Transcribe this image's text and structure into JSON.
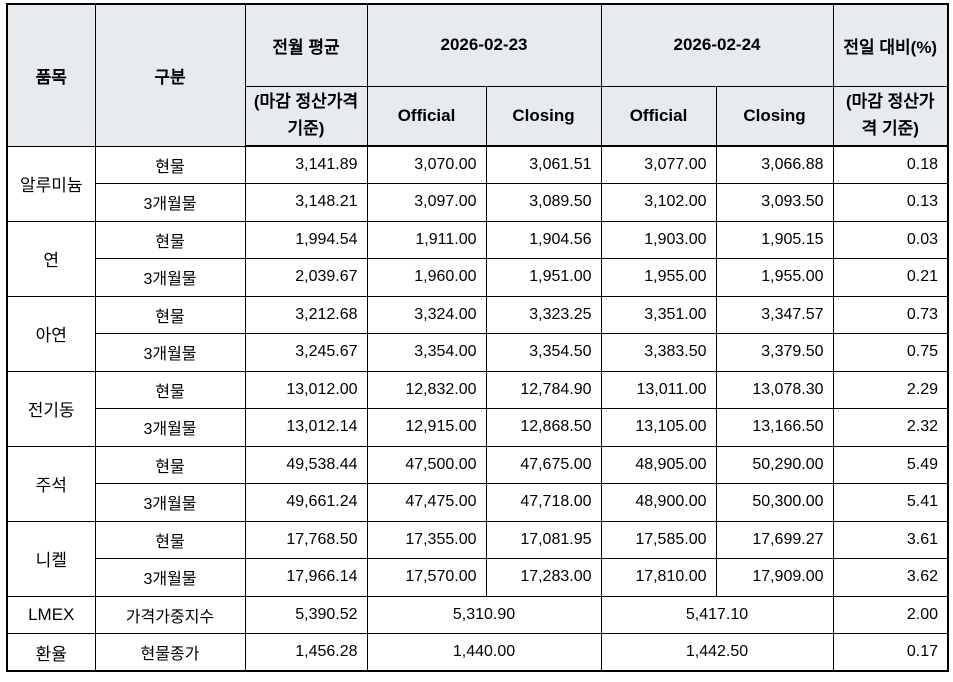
{
  "colors": {
    "header_bg": "#e7ebee",
    "border": "#000000",
    "text": "#000000",
    "body_bg": "#ffffff"
  },
  "table": {
    "header": {
      "col_item": "품목",
      "col_category": "구분",
      "col_prev_avg": "전월 평균",
      "col_prev_avg_sub": "(마감 정산가격 기준)",
      "date1": "2026-02-23",
      "date2": "2026-02-24",
      "official": "Official",
      "closing": "Closing",
      "col_change": "전일 대비(%)",
      "col_change_sub": "(마감 정산가격 기준)"
    },
    "groups": [
      {
        "item": "알루미늄",
        "rows": [
          {
            "category": "현물",
            "prev_avg": "3,141.89",
            "d1_official": "3,070.00",
            "d1_closing": "3,061.51",
            "d2_official": "3,077.00",
            "d2_closing": "3,066.88",
            "change": "0.18"
          },
          {
            "category": "3개월물",
            "prev_avg": "3,148.21",
            "d1_official": "3,097.00",
            "d1_closing": "3,089.50",
            "d2_official": "3,102.00",
            "d2_closing": "3,093.50",
            "change": "0.13"
          }
        ]
      },
      {
        "item": "연",
        "rows": [
          {
            "category": "현물",
            "prev_avg": "1,994.54",
            "d1_official": "1,911.00",
            "d1_closing": "1,904.56",
            "d2_official": "1,903.00",
            "d2_closing": "1,905.15",
            "change": "0.03"
          },
          {
            "category": "3개월물",
            "prev_avg": "2,039.67",
            "d1_official": "1,960.00",
            "d1_closing": "1,951.00",
            "d2_official": "1,955.00",
            "d2_closing": "1,955.00",
            "change": "0.21"
          }
        ]
      },
      {
        "item": "아연",
        "rows": [
          {
            "category": "현물",
            "prev_avg": "3,212.68",
            "d1_official": "3,324.00",
            "d1_closing": "3,323.25",
            "d2_official": "3,351.00",
            "d2_closing": "3,347.57",
            "change": "0.73"
          },
          {
            "category": "3개월물",
            "prev_avg": "3,245.67",
            "d1_official": "3,354.00",
            "d1_closing": "3,354.50",
            "d2_official": "3,383.50",
            "d2_closing": "3,379.50",
            "change": "0.75"
          }
        ]
      },
      {
        "item": "전기동",
        "rows": [
          {
            "category": "현물",
            "prev_avg": "13,012.00",
            "d1_official": "12,832.00",
            "d1_closing": "12,784.90",
            "d2_official": "13,011.00",
            "d2_closing": "13,078.30",
            "change": "2.29"
          },
          {
            "category": "3개월물",
            "prev_avg": "13,012.14",
            "d1_official": "12,915.00",
            "d1_closing": "12,868.50",
            "d2_official": "13,105.00",
            "d2_closing": "13,166.50",
            "change": "2.32"
          }
        ]
      },
      {
        "item": "주석",
        "rows": [
          {
            "category": "현물",
            "prev_avg": "49,538.44",
            "d1_official": "47,500.00",
            "d1_closing": "47,675.00",
            "d2_official": "48,905.00",
            "d2_closing": "50,290.00",
            "change": "5.49"
          },
          {
            "category": "3개월물",
            "prev_avg": "49,661.24",
            "d1_official": "47,475.00",
            "d1_closing": "47,718.00",
            "d2_official": "48,900.00",
            "d2_closing": "50,300.00",
            "change": "5.41"
          }
        ]
      },
      {
        "item": "니켈",
        "rows": [
          {
            "category": "현물",
            "prev_avg": "17,768.50",
            "d1_official": "17,355.00",
            "d1_closing": "17,081.95",
            "d2_official": "17,585.00",
            "d2_closing": "17,699.27",
            "change": "3.61"
          },
          {
            "category": "3개월물",
            "prev_avg": "17,966.14",
            "d1_official": "17,570.00",
            "d1_closing": "17,283.00",
            "d2_official": "17,810.00",
            "d2_closing": "17,909.00",
            "change": "3.62"
          }
        ]
      }
    ],
    "summary": [
      {
        "item": "LMEX",
        "category": "가격가중지수",
        "prev_avg": "5,390.52",
        "d1": "5,310.90",
        "d2": "5,417.10",
        "change": "2.00"
      },
      {
        "item": "환율",
        "category": "현물종가",
        "prev_avg": "1,456.28",
        "d1": "1,440.00",
        "d2": "1,442.50",
        "change": "0.17"
      }
    ]
  }
}
